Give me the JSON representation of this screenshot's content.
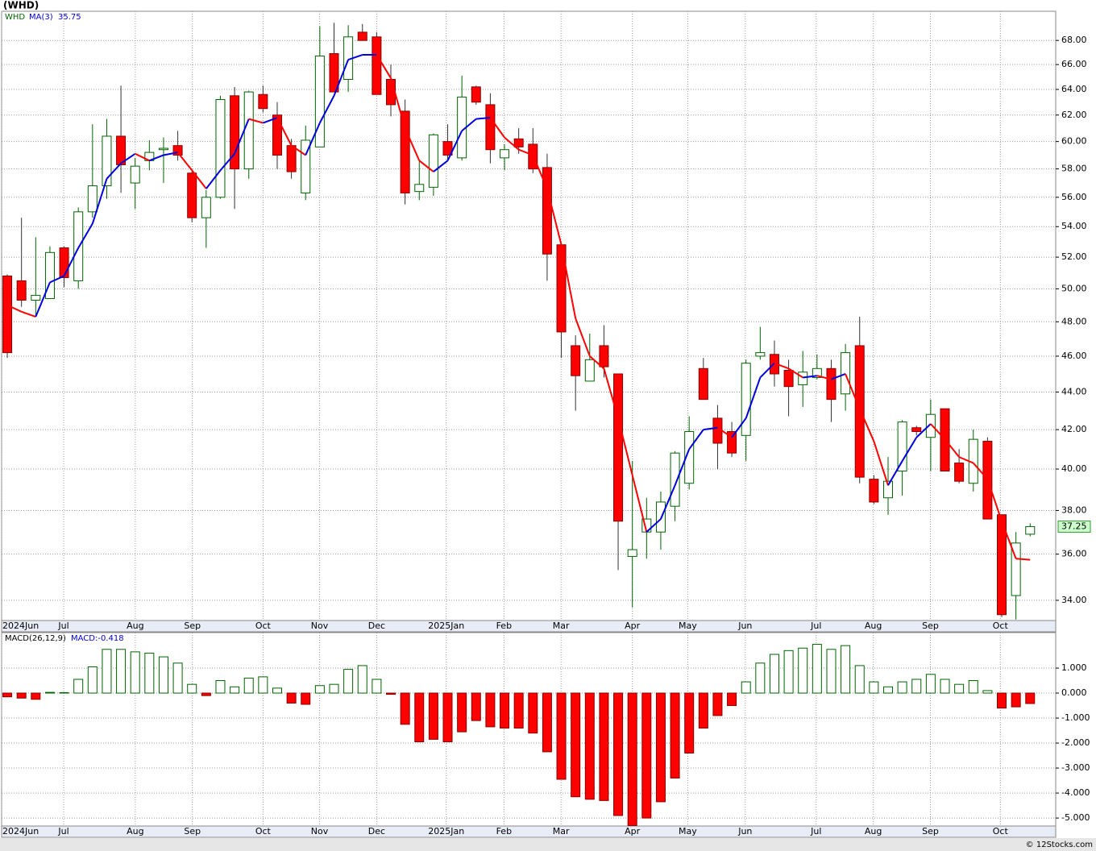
{
  "chart_data": [
    {
      "type": "candlestick",
      "title": "(WHD)",
      "ticker": "WHD",
      "log_scale": true,
      "grid": true,
      "up_color": "#006400",
      "down_color": "#ff0000",
      "ylim": [
        33.16,
        70.5
      ],
      "yticks": [
        {
          "value": 34,
          "label": "34.00"
        },
        {
          "value": 36,
          "label": "36.00"
        },
        {
          "value": 38,
          "label": "38.00"
        },
        {
          "value": 40,
          "label": "40.00"
        },
        {
          "value": 42,
          "label": "42.00"
        },
        {
          "value": 44,
          "label": "44.00"
        },
        {
          "value": 46,
          "label": "46.00"
        },
        {
          "value": 48,
          "label": "48.00"
        },
        {
          "value": 50,
          "label": "50.00"
        },
        {
          "value": 52,
          "label": "52.00"
        },
        {
          "value": 54,
          "label": "54.00"
        },
        {
          "value": 56,
          "label": "56.00"
        },
        {
          "value": 58,
          "label": "58.00"
        },
        {
          "value": 60,
          "label": "60.00"
        },
        {
          "value": 62,
          "label": "62.00"
        },
        {
          "value": 64,
          "label": "64.00"
        },
        {
          "value": 66,
          "label": "66.00"
        },
        {
          "value": 68,
          "label": "68.00"
        }
      ],
      "xlim": [
        -0.4,
        73.8
      ],
      "xticks": [
        {
          "value": -0.4,
          "label": "2024Jun"
        },
        {
          "value": 3.97,
          "label": "Jul"
        },
        {
          "value": 9.01,
          "label": "Aug"
        },
        {
          "value": 13.03,
          "label": "Sep"
        },
        {
          "value": 18.0,
          "label": "Oct"
        },
        {
          "value": 21.98,
          "label": "Nov"
        },
        {
          "value": 26.0,
          "label": "Dec"
        },
        {
          "value": 30.9,
          "label": "2025Jan"
        },
        {
          "value": 34.96,
          "label": "Feb"
        },
        {
          "value": 38.98,
          "label": "Mar"
        },
        {
          "value": 44.0,
          "label": "Apr"
        },
        {
          "value": 47.9,
          "label": "May"
        },
        {
          "value": 51.95,
          "label": "Jun"
        },
        {
          "value": 56.94,
          "label": "Jul"
        },
        {
          "value": 60.96,
          "label": "Aug"
        },
        {
          "value": 64.98,
          "label": "Sep"
        },
        {
          "value": 69.9,
          "label": "Oct"
        }
      ],
      "open": [
        50.8,
        50.5,
        49.3,
        49.4,
        52.6,
        50.5,
        55.0,
        56.8,
        60.4,
        57.0,
        58.6,
        59.4,
        59.7,
        57.7,
        54.6,
        56.0,
        63.5,
        58.0,
        63.6,
        62.0,
        59.7,
        56.3,
        59.6,
        66.9,
        64.8,
        68.7,
        68.3,
        64.8,
        62.3,
        56.4,
        56.7,
        60.0,
        58.8,
        64.2,
        62.8,
        58.8,
        60.2,
        59.8,
        58.1,
        52.8,
        46.6,
        44.6,
        46.6,
        45.0,
        35.9,
        37.0,
        37.0,
        38.2,
        39.3,
        45.3,
        42.6,
        41.9,
        41.7,
        46.0,
        46.1,
        45.2,
        44.4,
        44.8,
        45.3,
        43.9,
        46.6,
        39.5,
        38.6,
        39.9,
        42.1,
        41.6,
        43.1,
        40.3,
        39.3,
        41.4,
        37.8,
        34.2,
        36.9
      ],
      "high": [
        50.9,
        54.6,
        53.3,
        52.7,
        52.7,
        55.3,
        61.3,
        61.7,
        64.3,
        58.8,
        60.1,
        60.3,
        60.8,
        57.9,
        56.5,
        63.5,
        64.2,
        63.9,
        64.3,
        63.0,
        60.2,
        61.2,
        69.2,
        69.5,
        69.3,
        69.4,
        68.7,
        66.0,
        63.2,
        58.6,
        60.6,
        61.3,
        65.1,
        64.3,
        63.7,
        59.8,
        61.0,
        61.0,
        59.1,
        52.9,
        47.2,
        47.3,
        47.8,
        45.0,
        40.4,
        38.6,
        38.9,
        40.9,
        42.7,
        45.9,
        43.3,
        42.4,
        45.8,
        47.7,
        46.9,
        45.8,
        46.3,
        46.1,
        45.8,
        46.7,
        48.3,
        39.7,
        40.6,
        42.5,
        42.2,
        43.6,
        43.1,
        41.0,
        42.0,
        41.6,
        37.8,
        37.0,
        37.4
      ],
      "low": [
        45.9,
        48.9,
        48.3,
        49.4,
        50.1,
        50.0,
        54.6,
        55.9,
        56.3,
        55.2,
        57.9,
        57.0,
        58.6,
        54.3,
        52.6,
        55.9,
        55.2,
        57.3,
        62.2,
        58.0,
        57.3,
        55.8,
        59.6,
        63.8,
        63.8,
        68.0,
        63.6,
        61.9,
        55.5,
        55.8,
        56.1,
        58.6,
        58.6,
        62.8,
        58.4,
        57.9,
        59.1,
        57.7,
        50.5,
        45.9,
        43.0,
        44.6,
        44.8,
        35.3,
        33.7,
        35.8,
        36.2,
        37.5,
        39.0,
        43.6,
        40.0,
        40.6,
        40.4,
        45.8,
        44.3,
        42.7,
        43.2,
        44.7,
        42.4,
        43.0,
        39.3,
        38.3,
        37.8,
        38.7,
        41.7,
        39.9,
        39.9,
        39.3,
        38.9,
        37.6,
        33.3,
        33.2,
        36.8
      ],
      "close": [
        46.2,
        49.3,
        49.6,
        52.3,
        50.7,
        55.0,
        56.8,
        60.4,
        58.3,
        58.2,
        59.2,
        59.5,
        59.0,
        54.6,
        56.0,
        63.2,
        58.0,
        63.8,
        62.5,
        59.0,
        57.8,
        60.1,
        66.7,
        63.8,
        68.3,
        68.0,
        63.6,
        62.8,
        56.3,
        56.9,
        60.5,
        59.0,
        63.4,
        63.0,
        59.4,
        59.4,
        59.6,
        58.0,
        52.2,
        47.4,
        44.9,
        45.8,
        45.4,
        37.5,
        36.2,
        37.6,
        38.4,
        40.8,
        41.9,
        43.6,
        41.3,
        40.8,
        45.6,
        46.2,
        45.0,
        44.3,
        45.1,
        45.3,
        43.6,
        46.2,
        39.6,
        38.4,
        39.4,
        42.4,
        41.9,
        42.8,
        39.9,
        39.4,
        41.5,
        37.6,
        33.4,
        36.5,
        37.25
      ],
      "ma": {
        "name": "MA(3)",
        "rise_color": "#0000dd",
        "fall_color": "#ff0000",
        "values": [
          49.0,
          48.6,
          48.3,
          50.4,
          50.8,
          52.6,
          54.2,
          57.3,
          58.4,
          59.1,
          58.6,
          59.0,
          59.2,
          57.9,
          56.6,
          57.9,
          59.1,
          61.7,
          61.4,
          61.8,
          59.7,
          59.0,
          61.4,
          63.5,
          66.4,
          66.8,
          66.8,
          64.9,
          61.0,
          58.6,
          57.8,
          58.6,
          60.8,
          61.7,
          61.8,
          60.3,
          59.4,
          59.0,
          56.6,
          52.8,
          48.2,
          46.0,
          45.3,
          42.6,
          39.7,
          37.0,
          37.6,
          39.2,
          41.0,
          42.0,
          42.1,
          41.6,
          42.6,
          44.8,
          45.6,
          45.3,
          44.8,
          44.9,
          44.7,
          45.0,
          43.1,
          41.4,
          39.2,
          40.4,
          41.6,
          42.3,
          41.5,
          40.6,
          40.3,
          39.5,
          37.5,
          35.8,
          35.75
        ]
      },
      "footer": "© 12Stocks.com"
    },
    {
      "type": "histogram_bar",
      "title": "MACD(26,12,9)",
      "current_label": "MACD:-0.418",
      "grid": true,
      "up_color": "#006400",
      "down_color": "#ff0000",
      "ylim": [
        -5.32,
        2.42
      ],
      "yticks": [
        {
          "value": 1,
          "label": "1.000"
        },
        {
          "value": 0,
          "label": "0.000"
        },
        {
          "value": -1,
          "label": "-1.000"
        },
        {
          "value": -2,
          "label": "-2.000"
        },
        {
          "value": -3,
          "label": "-3.000"
        },
        {
          "value": -4,
          "label": "-4.000"
        },
        {
          "value": -5,
          "label": "-5.000"
        }
      ],
      "values": [
        -0.15,
        -0.2,
        -0.25,
        0.03,
        0.02,
        0.55,
        1.05,
        1.75,
        1.75,
        1.65,
        1.6,
        1.45,
        1.2,
        0.35,
        -0.1,
        0.5,
        0.25,
        0.6,
        0.65,
        0.2,
        -0.4,
        -0.45,
        0.3,
        0.35,
        0.95,
        1.1,
        0.55,
        -0.05,
        -1.25,
        -1.95,
        -1.85,
        -1.95,
        -1.55,
        -1.1,
        -1.35,
        -1.4,
        -1.4,
        -1.6,
        -2.35,
        -3.45,
        -4.15,
        -4.25,
        -4.3,
        -4.9,
        -5.3,
        -5.0,
        -4.35,
        -3.4,
        -2.4,
        -1.4,
        -0.9,
        -0.5,
        0.45,
        1.2,
        1.55,
        1.7,
        1.8,
        1.95,
        1.75,
        1.9,
        1.1,
        0.45,
        0.25,
        0.45,
        0.55,
        0.75,
        0.55,
        0.35,
        0.5,
        0.1,
        -0.6,
        -0.55,
        -0.418
      ]
    }
  ]
}
